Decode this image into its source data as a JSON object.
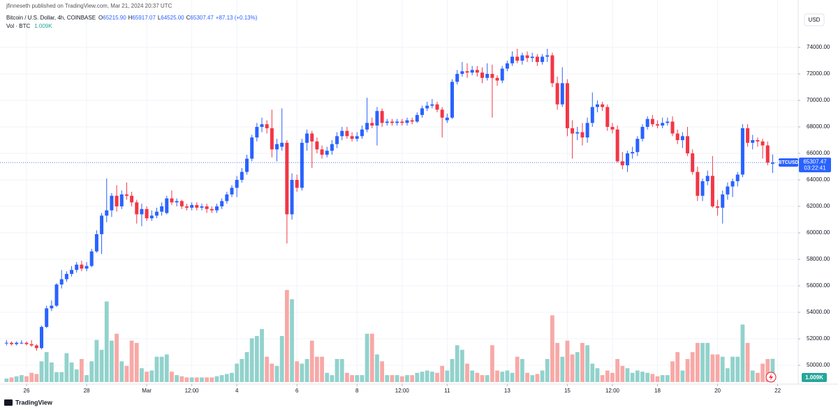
{
  "header": {
    "published": "jfinneseth published on TradingView.com, Mar 21, 2024 20:37 UTC",
    "instrument": "Bitcoin / U.S. Dollar, 4h, COINBASE",
    "ohlc_legend": [
      {
        "key": "O",
        "value": "65215.90"
      },
      {
        "key": "H",
        "value": "65917.07"
      },
      {
        "key": "L",
        "value": "64525.00"
      },
      {
        "key": "C",
        "value": "65307.47"
      }
    ],
    "change": "+87.13 (+0.13%)",
    "volume_title": "Vol · BTC"
  },
  "chart_data": {
    "type": "candlestick",
    "symbol": "BTCUSD",
    "countdown": "03:22:41",
    "currency": "USD",
    "up_color": "#2962ff",
    "down_color": "#f23645",
    "volume_up_color": "#92d2cc",
    "volume_down_color": "#f7a9a7",
    "grid": true,
    "ylim": [
      48580,
      77580
    ],
    "yticks": [
      {
        "value": 50000,
        "label": "50000.00"
      },
      {
        "value": 52000,
        "label": "52000.00"
      },
      {
        "value": 54000,
        "label": "54000.00"
      },
      {
        "value": 56000,
        "label": "56000.00"
      },
      {
        "value": 58000,
        "label": "58000.00"
      },
      {
        "value": 60000,
        "label": "60000.00"
      },
      {
        "value": 62000,
        "label": "62000.00"
      },
      {
        "value": 64000,
        "label": "64000.00"
      },
      {
        "value": 66000,
        "label": "66000.00"
      },
      {
        "value": 68000,
        "label": "68000.00"
      },
      {
        "value": 70000,
        "label": "70000.00"
      },
      {
        "value": 72000,
        "label": "72000.00"
      },
      {
        "value": 74000,
        "label": "74000.00"
      }
    ],
    "xlim": [
      -1.3,
      158.1
    ],
    "xticks": [
      {
        "value": 4,
        "label": "26"
      },
      {
        "value": 16,
        "label": "28"
      },
      {
        "value": 28,
        "label": "Mar"
      },
      {
        "value": 37,
        "label": "12:00"
      },
      {
        "value": 46,
        "label": "4"
      },
      {
        "value": 58,
        "label": "6"
      },
      {
        "value": 70,
        "label": "8"
      },
      {
        "value": 79,
        "label": "12:00"
      },
      {
        "value": 88,
        "label": "11"
      },
      {
        "value": 100,
        "label": "13"
      },
      {
        "value": 112,
        "label": "15"
      },
      {
        "value": 121,
        "label": "12:00"
      },
      {
        "value": 130,
        "label": "18"
      },
      {
        "value": 142,
        "label": "20"
      },
      {
        "value": 154,
        "label": "22"
      }
    ],
    "ohlc": [
      [
        51700,
        51900,
        51500,
        51700
      ],
      [
        51700,
        51800,
        51500,
        51600
      ],
      [
        51600,
        51800,
        51500,
        51700
      ],
      [
        51700,
        51900,
        51600,
        51700
      ],
      [
        51700,
        51800,
        51500,
        51600
      ],
      [
        51600,
        51900,
        51400,
        51500
      ],
      [
        51500,
        51600,
        51100,
        51300
      ],
      [
        51300,
        53000,
        51200,
        52900
      ],
      [
        52900,
        54500,
        52800,
        54300
      ],
      [
        54300,
        54900,
        54100,
        54500
      ],
      [
        54500,
        56200,
        54400,
        56100
      ],
      [
        56100,
        57200,
        55800,
        56500
      ],
      [
        56500,
        57100,
        56300,
        56900
      ],
      [
        56900,
        57500,
        56700,
        57200
      ],
      [
        57200,
        57800,
        57000,
        57600
      ],
      [
        57600,
        57900,
        57100,
        57300
      ],
      [
        57300,
        57800,
        57100,
        57500
      ],
      [
        57500,
        58800,
        57400,
        58600
      ],
      [
        58600,
        60200,
        58500,
        59900
      ],
      [
        59900,
        61500,
        58400,
        61300
      ],
      [
        61300,
        64100,
        60800,
        61700
      ],
      [
        61700,
        63000,
        61200,
        62800
      ],
      [
        62800,
        63600,
        61600,
        62000
      ],
      [
        62000,
        63200,
        61800,
        62900
      ],
      [
        62900,
        63800,
        62500,
        62800
      ],
      [
        62800,
        63100,
        62000,
        62300
      ],
      [
        62300,
        62500,
        60700,
        61400
      ],
      [
        61400,
        62200,
        60500,
        61800
      ],
      [
        61800,
        62000,
        60900,
        61100
      ],
      [
        61100,
        61700,
        60900,
        61300
      ],
      [
        61300,
        61900,
        61100,
        61600
      ],
      [
        61600,
        62300,
        61300,
        62000
      ],
      [
        61500,
        62800,
        61400,
        62600
      ],
      [
        62600,
        63200,
        62100,
        62300
      ],
      [
        62300,
        62600,
        62000,
        62400
      ],
      [
        62400,
        62500,
        61800,
        62000
      ],
      [
        62000,
        62200,
        61700,
        61900
      ],
      [
        61900,
        62300,
        61700,
        62100
      ],
      [
        62100,
        62300,
        61700,
        61900
      ],
      [
        61900,
        62200,
        61700,
        62000
      ],
      [
        62000,
        62200,
        61500,
        61800
      ],
      [
        61800,
        62000,
        61500,
        61700
      ],
      [
        61700,
        62200,
        61500,
        62000
      ],
      [
        62000,
        62600,
        61800,
        62400
      ],
      [
        62400,
        63100,
        62200,
        62900
      ],
      [
        62900,
        63600,
        62700,
        63400
      ],
      [
        63400,
        64300,
        62700,
        64000
      ],
      [
        64000,
        64900,
        63800,
        64600
      ],
      [
        64600,
        65900,
        64400,
        65600
      ],
      [
        65600,
        67400,
        65400,
        67200
      ],
      [
        67200,
        68300,
        66900,
        68000
      ],
      [
        68000,
        68700,
        67600,
        68200
      ],
      [
        68200,
        68500,
        67500,
        67900
      ],
      [
        67900,
        69300,
        65700,
        66300
      ],
      [
        66300,
        67100,
        65400,
        66700
      ],
      [
        66500,
        69400,
        66200,
        66800
      ],
      [
        66800,
        67000,
        59200,
        61400
      ],
      [
        61400,
        64500,
        61000,
        64000
      ],
      [
        64000,
        64400,
        63100,
        63400
      ],
      [
        63400,
        67100,
        63200,
        66800
      ],
      [
        66800,
        67800,
        66200,
        67500
      ],
      [
        67500,
        67700,
        64900,
        66900
      ],
      [
        66900,
        67200,
        66000,
        66300
      ],
      [
        66300,
        66600,
        65600,
        65900
      ],
      [
        65900,
        66500,
        65700,
        66200
      ],
      [
        66200,
        67000,
        65900,
        66700
      ],
      [
        66700,
        67600,
        66400,
        67300
      ],
      [
        67300,
        68000,
        67000,
        67700
      ],
      [
        67700,
        68000,
        67100,
        67300
      ],
      [
        67300,
        67600,
        66900,
        67100
      ],
      [
        67100,
        67600,
        66900,
        67300
      ],
      [
        67300,
        68100,
        67100,
        67800
      ],
      [
        67800,
        70200,
        67600,
        68300
      ],
      [
        68300,
        68700,
        67900,
        68100
      ],
      [
        68100,
        69500,
        66600,
        69200
      ],
      [
        69200,
        69400,
        68000,
        68300
      ],
      [
        68300,
        68600,
        68100,
        68400
      ],
      [
        68400,
        68600,
        68100,
        68300
      ],
      [
        68300,
        68600,
        68100,
        68400
      ],
      [
        68400,
        68600,
        68100,
        68300
      ],
      [
        68300,
        68700,
        68100,
        68500
      ],
      [
        68500,
        68700,
        68200,
        68400
      ],
      [
        68400,
        69100,
        68300,
        68900
      ],
      [
        68900,
        69600,
        68700,
        69400
      ],
      [
        69400,
        69900,
        69200,
        69600
      ],
      [
        69600,
        70100,
        69400,
        69700
      ],
      [
        69700,
        69900,
        69100,
        69300
      ],
      [
        69300,
        69500,
        67200,
        68700
      ],
      [
        68500,
        69000,
        68300,
        68700
      ],
      [
        68700,
        71600,
        68600,
        71400
      ],
      [
        71400,
        72300,
        71200,
        72000
      ],
      [
        72000,
        72900,
        71800,
        72200
      ],
      [
        72200,
        72800,
        71700,
        72100
      ],
      [
        72100,
        72600,
        71900,
        72300
      ],
      [
        72300,
        72600,
        71800,
        72100
      ],
      [
        72100,
        72500,
        71300,
        71700
      ],
      [
        71700,
        72800,
        71500,
        72000
      ],
      [
        72000,
        72700,
        68700,
        71700
      ],
      [
        71700,
        71900,
        71100,
        71500
      ],
      [
        71500,
        72600,
        71300,
        72400
      ],
      [
        72400,
        73000,
        72200,
        72800
      ],
      [
        72800,
        73700,
        72600,
        73300
      ],
      [
        73300,
        73900,
        72800,
        73000
      ],
      [
        73000,
        73600,
        72700,
        73400
      ],
      [
        73400,
        73700,
        72900,
        73200
      ],
      [
        73200,
        73600,
        72900,
        73300
      ],
      [
        73300,
        73500,
        72600,
        72900
      ],
      [
        72900,
        73500,
        72700,
        73300
      ],
      [
        73300,
        73900,
        72900,
        73400
      ],
      [
        73400,
        73600,
        71000,
        71300
      ],
      [
        71300,
        71800,
        69300,
        69700
      ],
      [
        69700,
        72500,
        69500,
        71300
      ],
      [
        71300,
        71600,
        67300,
        67900
      ],
      [
        67900,
        68500,
        65600,
        67500
      ],
      [
        67500,
        68000,
        67000,
        67600
      ],
      [
        67600,
        68300,
        66600,
        67200
      ],
      [
        67200,
        68700,
        66800,
        68300
      ],
      [
        68300,
        70600,
        68000,
        69500
      ],
      [
        69500,
        70000,
        69100,
        69700
      ],
      [
        69700,
        69900,
        69200,
        69500
      ],
      [
        69500,
        69700,
        67700,
        68000
      ],
      [
        68000,
        68300,
        67500,
        67800
      ],
      [
        67800,
        68100,
        65300,
        65400
      ],
      [
        65400,
        66100,
        64800,
        65100
      ],
      [
        65100,
        66200,
        64600,
        66000
      ],
      [
        66000,
        66500,
        65600,
        66100
      ],
      [
        66100,
        67300,
        65800,
        67100
      ],
      [
        67100,
        68200,
        66900,
        68000
      ],
      [
        68000,
        68800,
        67800,
        68600
      ],
      [
        68600,
        68900,
        68000,
        68200
      ],
      [
        68200,
        68500,
        67900,
        68100
      ],
      [
        68100,
        68700,
        67900,
        68300
      ],
      [
        68300,
        68700,
        68100,
        68400
      ],
      [
        68400,
        68800,
        67300,
        67500
      ],
      [
        67500,
        67800,
        66700,
        67000
      ],
      [
        67000,
        67600,
        66400,
        67300
      ],
      [
        67300,
        68000,
        65800,
        66000
      ],
      [
        66000,
        66300,
        64400,
        64600
      ],
      [
        64600,
        65000,
        62400,
        62800
      ],
      [
        62800,
        64100,
        62400,
        63900
      ],
      [
        63900,
        64700,
        63600,
        64300
      ],
      [
        64300,
        65800,
        61900,
        62000
      ],
      [
        62000,
        62500,
        61300,
        61900
      ],
      [
        61900,
        63200,
        60700,
        62900
      ],
      [
        62900,
        63800,
        62500,
        63500
      ],
      [
        63500,
        64100,
        62700,
        63900
      ],
      [
        63900,
        64600,
        63500,
        64400
      ],
      [
        64400,
        68200,
        64200,
        67900
      ],
      [
        67900,
        68200,
        66500,
        66800
      ],
      [
        66800,
        67400,
        66300,
        67000
      ],
      [
        67000,
        67200,
        66500,
        66900
      ],
      [
        66900,
        67100,
        65600,
        66600
      ],
      [
        66600,
        66900,
        65100,
        65300
      ],
      [
        65215.9,
        65917.07,
        64525,
        65307.47
      ]
    ],
    "volume": [
      150,
      200,
      250,
      300,
      250,
      400,
      350,
      900,
      1300,
      850,
      430,
      430,
      1250,
      850,
      550,
      1000,
      300,
      900,
      1830,
      1400,
      3500,
      1800,
      2100,
      900,
      700,
      1800,
      1700,
      600,
      450,
      500,
      1100,
      1100,
      1200,
      450,
      300,
      250,
      200,
      200,
      200,
      200,
      200,
      200,
      250,
      300,
      350,
      400,
      800,
      1000,
      1300,
      1900,
      2000,
      2300,
      1100,
      800,
      700,
      2000,
      4000,
      3600,
      900,
      800,
      1000,
      1800,
      1100,
      1100,
      400,
      300,
      1000,
      1000,
      400,
      300,
      300,
      300,
      2100,
      2100,
      1200,
      900,
      300,
      300,
      300,
      250,
      300,
      300,
      400,
      450,
      500,
      450,
      400,
      700,
      500,
      1000,
      1600,
      1400,
      800,
      500,
      400,
      300,
      300,
      1600,
      500,
      450,
      500,
      400,
      1100,
      1000,
      400,
      300,
      350,
      500,
      1000,
      2900,
      1700,
      1100,
      1800,
      1200,
      1300,
      1700,
      1600,
      800,
      600,
      300,
      500,
      400,
      1000,
      700,
      600,
      400,
      500,
      450,
      400,
      350,
      250,
      300,
      300,
      900,
      1300,
      500,
      1000,
      1300,
      1700,
      1700,
      1700,
      1200,
      1200,
      1100,
      600,
      1100,
      1100,
      2500,
      1700,
      500,
      400,
      800,
      1000,
      1009
    ],
    "volume_label": "1.009K"
  },
  "footer": {
    "brand": "TradingView"
  }
}
